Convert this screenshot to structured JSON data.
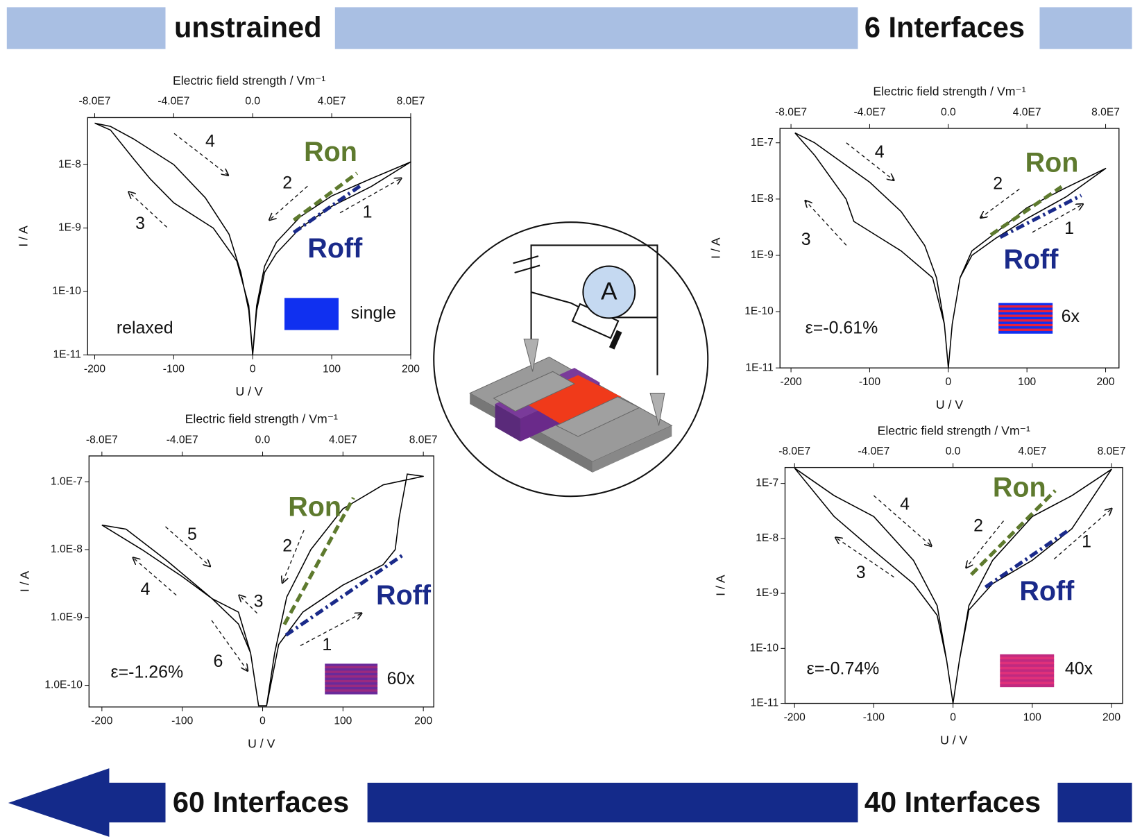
{
  "banners": {
    "top_left": "unstrained",
    "top_right": "6 Interfaces",
    "bottom_left": "60 Interfaces",
    "bottom_right": "40 Interfaces"
  },
  "schematic": {
    "ammeter": "A"
  },
  "chart_data": [
    {
      "type": "line",
      "log_y": true,
      "xlabel": "U / V",
      "ylabel": "I / A",
      "x2label": "Electric field strength / Vm⁻¹",
      "xlim": [
        -209,
        200
      ],
      "xticks": [
        -200,
        -100,
        0,
        100,
        200
      ],
      "x2lim": [
        -83600000,
        80000000
      ],
      "x2ticks": [
        {
          "value": -80000000,
          "label": "-8.0E7"
        },
        {
          "value": -40000000,
          "label": "-4.0E7"
        },
        {
          "value": 0,
          "label": "0.0"
        },
        {
          "value": 40000000,
          "label": "4.0E7"
        },
        {
          "value": 80000000,
          "label": "8.0E7"
        }
      ],
      "ylim": [
        1e-11,
        5.5e-08
      ],
      "yticks": [
        {
          "value": 1e-11,
          "label": "1E-11"
        },
        {
          "value": 1e-10,
          "label": "1E-10"
        },
        {
          "value": 1e-09,
          "label": "1E-9"
        },
        {
          "value": 1e-08,
          "label": "1E-8"
        }
      ],
      "series": [
        {
          "color": "#000000",
          "dash": "solid",
          "x": [
            -200,
            -180,
            -150,
            -100,
            -60,
            -30,
            -15,
            -5,
            0,
            5,
            15,
            30,
            60,
            100,
            150,
            200,
            150,
            100,
            60,
            30,
            15,
            5,
            0,
            -5,
            -20,
            -50,
            -100,
            -130,
            -150,
            -180,
            -200
          ],
          "values": [
            4.5e-08,
            4e-08,
            2.5e-08,
            1e-08,
            3e-09,
            8e-10,
            2e-10,
            5e-11,
            1e-11,
            5e-11,
            2e-10,
            4e-10,
            1e-09,
            2.2e-09,
            4.5e-09,
            1.1e-08,
            6e-09,
            3.2e-09,
            1.5e-09,
            6e-10,
            2.5e-10,
            6e-11,
            1e-11,
            6e-11,
            3e-10,
            1e-09,
            2.5e-09,
            6e-09,
            1.2e-08,
            3.5e-08,
            4.5e-08
          ]
        },
        {
          "name": "Ron",
          "color": "#5e7a2e",
          "dash": "dashed",
          "x": [
            52,
            132
          ],
          "values": [
            1.33e-09,
            7.3e-09
          ]
        },
        {
          "name": "Roff",
          "color": "#1a2a8a",
          "dash": "dashdot",
          "x": [
            52,
            139
          ],
          "values": [
            8.5e-10,
            4.9e-09
          ]
        }
      ],
      "annotations": [
        "4",
        "2",
        "1",
        "3"
      ],
      "strain": "relaxed",
      "sample": {
        "label": "single",
        "colors": [
          "#1030f0"
        ]
      }
    },
    {
      "type": "line",
      "log_y": true,
      "xlabel": "U / V",
      "ylabel": "I / A",
      "x2label": "Electric field strength / Vm⁻¹",
      "xlim": [
        -214,
        217
      ],
      "xticks": [
        -200,
        -100,
        0,
        100,
        200
      ],
      "x2lim": [
        -85600000,
        86800000
      ],
      "x2ticks": [
        {
          "value": -80000000,
          "label": "-8.0E7"
        },
        {
          "value": -40000000,
          "label": "-4.0E7"
        },
        {
          "value": 0,
          "label": "0.0"
        },
        {
          "value": 40000000,
          "label": "4.0E7"
        },
        {
          "value": 80000000,
          "label": "8.0E7"
        }
      ],
      "ylim": [
        1e-11,
        1.8e-07
      ],
      "yticks": [
        {
          "value": 1e-11,
          "label": "1E-11"
        },
        {
          "value": 1e-10,
          "label": "1E-10"
        },
        {
          "value": 1e-09,
          "label": "1E-9"
        },
        {
          "value": 1e-08,
          "label": "1E-8"
        },
        {
          "value": 1e-07,
          "label": "1E-7"
        }
      ],
      "series": [
        {
          "color": "#000000",
          "dash": "solid",
          "x": [
            -195,
            -170,
            -140,
            -100,
            -60,
            -30,
            -15,
            -5,
            0,
            5,
            15,
            30,
            60,
            100,
            150,
            200,
            150,
            100,
            60,
            30,
            15,
            5,
            0,
            -5,
            -20,
            -60,
            -120,
            -130,
            -170,
            -195
          ],
          "values": [
            1.5e-07,
            1e-07,
            5e-08,
            2e-08,
            6e-09,
            1.5e-09,
            4e-10,
            6e-11,
            1e-11,
            6e-11,
            4e-10,
            1e-09,
            2e-09,
            4.5e-09,
            1.1e-08,
            3.5e-08,
            1.6e-08,
            7e-09,
            2.5e-09,
            1.2e-09,
            4e-10,
            6e-11,
            1e-11,
            6e-11,
            4e-10,
            1.2e-09,
            4e-09,
            1e-08,
            6e-08,
            1.5e-07
          ]
        },
        {
          "name": "Ron",
          "color": "#5e7a2e",
          "dash": "dashed",
          "x": [
            54,
            144
          ],
          "values": [
            2.3e-09,
            1.66e-08
          ]
        },
        {
          "name": "Roff",
          "color": "#1a2a8a",
          "dash": "dashdot",
          "x": [
            66,
            169
          ],
          "values": [
            2.1e-09,
            1.16e-08
          ]
        }
      ],
      "annotations": [
        "4",
        "2",
        "1",
        "3"
      ],
      "strain": "ε=-0.61%",
      "sample": {
        "label": "6x",
        "colors": [
          "#1030f0",
          "#e8203a"
        ]
      }
    },
    {
      "type": "line",
      "log_y": true,
      "xlabel": "U / V",
      "ylabel": "I / A",
      "x2label": "Electric field strength / Vm⁻¹",
      "xlim": [
        -216,
        213
      ],
      "xticks": [
        -200,
        -100,
        0,
        100,
        200
      ],
      "x2lim": [
        -86400000,
        85200000
      ],
      "x2ticks": [
        {
          "value": -80000000,
          "label": "-8.0E7"
        },
        {
          "value": -40000000,
          "label": "-4.0E7"
        },
        {
          "value": 0,
          "label": "0.0"
        },
        {
          "value": 40000000,
          "label": "4.0E7"
        },
        {
          "value": 80000000,
          "label": "8.0E7"
        }
      ],
      "ylim": [
        4.8e-11,
        2.4e-07
      ],
      "yticks": [
        {
          "value": 1e-10,
          "label": "1.0E-10"
        },
        {
          "value": 1e-09,
          "label": "1.0E-9"
        },
        {
          "value": 1e-08,
          "label": "1.0E-8"
        },
        {
          "value": 1e-07,
          "label": "1.0E-7"
        }
      ],
      "series": [
        {
          "color": "#000000",
          "dash": "solid",
          "x": [
            -200,
            -150,
            -100,
            -63,
            -30,
            -15,
            -5,
            5,
            20,
            50,
            100,
            150,
            165,
            170,
            180,
            200,
            150,
            100,
            60,
            30,
            15,
            5,
            -5,
            -15,
            -30,
            -63,
            -120,
            -170,
            -200
          ],
          "values": [
            2.3e-08,
            1e-08,
            4e-09,
            1.9e-09,
            8e-10,
            3e-10,
            5e-11,
            5e-11,
            4e-10,
            1.2e-09,
            3e-09,
            6e-09,
            1e-08,
            3e-08,
            1.3e-07,
            1.2e-07,
            9e-08,
            4e-08,
            1e-08,
            2e-09,
            3e-10,
            5e-11,
            5e-11,
            3e-10,
            1.2e-09,
            1.9e-09,
            7e-09,
            2e-08,
            2.3e-08
          ]
        },
        {
          "name": "Ron",
          "color": "#5e7a2e",
          "dash": "dashed",
          "x": [
            27,
            113
          ],
          "values": [
            7.9e-10,
            5.8e-08
          ]
        },
        {
          "name": "Roff",
          "color": "#1a2a8a",
          "dash": "dashdot",
          "x": [
            29,
            177
          ],
          "values": [
            5.5e-10,
            8.7e-09
          ]
        }
      ],
      "annotations": [
        "5",
        "2",
        "3",
        "4",
        "1",
        "6"
      ],
      "strain": "ε=-1.26%",
      "sample": {
        "label": "60x",
        "colors": [
          "#6a2a9a",
          "#9a2a80"
        ]
      }
    },
    {
      "type": "line",
      "log_y": true,
      "xlabel": "U / V",
      "ylabel": "I / A",
      "x2label": "Electric field strength / Vm⁻¹",
      "xlim": [
        -212,
        214
      ],
      "xticks": [
        -200,
        -100,
        0,
        100,
        200
      ],
      "x2lim": [
        -84800000,
        85600000
      ],
      "x2ticks": [
        {
          "value": -80000000,
          "label": "-8.0E7"
        },
        {
          "value": -40000000,
          "label": "-4.0E7"
        },
        {
          "value": 0,
          "label": "0.0"
        },
        {
          "value": 40000000,
          "label": "4.0E7"
        },
        {
          "value": 80000000,
          "label": "8.0E7"
        }
      ],
      "ylim": [
        1e-11,
        1.95e-07
      ],
      "yticks": [
        {
          "value": 1e-11,
          "label": "1E-11"
        },
        {
          "value": 1e-10,
          "label": "1E-10"
        },
        {
          "value": 1e-09,
          "label": "1E-9"
        },
        {
          "value": 1e-08,
          "label": "1E-8"
        },
        {
          "value": 1e-07,
          "label": "1E-7"
        }
      ],
      "series": [
        {
          "color": "#000000",
          "dash": "solid",
          "x": [
            -200,
            -150,
            -100,
            -50,
            -20,
            -8,
            0,
            8,
            20,
            50,
            100,
            150,
            200,
            150,
            100,
            50,
            20,
            8,
            0,
            -8,
            -20,
            -50,
            -100,
            -150,
            -200
          ],
          "values": [
            1.9e-07,
            6e-08,
            2.5e-08,
            4e-09,
            6e-10,
            6e-11,
            1e-11,
            6e-11,
            5e-10,
            1.5e-09,
            4e-09,
            1.5e-08,
            1.8e-07,
            6e-08,
            2.5e-08,
            4e-09,
            6e-10,
            6e-11,
            1e-11,
            6e-11,
            4e-10,
            1.5e-09,
            6e-09,
            2.5e-08,
            1.9e-07
          ]
        },
        {
          "name": "Ron",
          "color": "#5e7a2e",
          "dash": "dashed",
          "x": [
            23,
            129
          ],
          "values": [
            2.2e-09,
            7.4e-08
          ]
        },
        {
          "name": "Roff",
          "color": "#1a2a8a",
          "dash": "dashdot",
          "x": [
            41,
            144
          ],
          "values": [
            1.3e-09,
            1.35e-08
          ]
        }
      ],
      "annotations": [
        "4",
        "2",
        "1",
        "3"
      ],
      "strain": "ε=-0.74%",
      "sample": {
        "label": "40x",
        "colors": [
          "#c02a80",
          "#e0307a"
        ]
      }
    }
  ]
}
